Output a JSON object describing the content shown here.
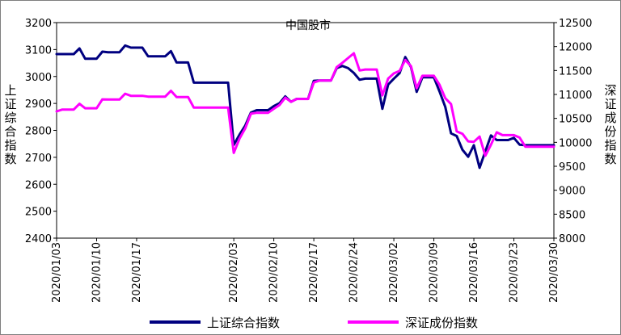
{
  "chart_data": {
    "type": "line",
    "title": "中国股市",
    "ylabel": "上证综合指数",
    "y2label": "深证成份指数",
    "ylim": [
      2400,
      3200
    ],
    "y2lim": [
      8000,
      12500
    ],
    "yticks": [
      2400,
      2500,
      2600,
      2700,
      2800,
      2900,
      3000,
      3100,
      3200
    ],
    "y2ticks": [
      8000,
      8500,
      9000,
      9500,
      10000,
      10500,
      11000,
      11500,
      12000,
      12500
    ],
    "xtick_labels": [
      "2020/01/03",
      "2020/01/10",
      "2020/01/17",
      "2020/02/03",
      "2020/02/10",
      "2020/02/17",
      "2020/02/24",
      "2020/03/02",
      "2020/03/09",
      "2020/03/16",
      "2020/03/23",
      "2020/03/30"
    ],
    "xtick_days": [
      0,
      7,
      14,
      31,
      38,
      45,
      52,
      59,
      66,
      73,
      80,
      87
    ],
    "legend_position": "bottom",
    "series": [
      {
        "name": "上证综合指数",
        "color": "#000080",
        "axis": "left",
        "x": [
          0,
          1,
          2,
          3,
          4,
          5,
          6,
          7,
          8,
          9,
          10,
          11,
          12,
          13,
          14,
          15,
          16,
          17,
          18,
          19,
          20,
          21,
          22,
          23,
          24,
          25,
          26,
          27,
          28,
          29,
          30,
          31,
          32,
          33,
          34,
          35,
          36,
          37,
          38,
          39,
          40,
          41,
          42,
          43,
          44,
          45,
          46,
          47,
          48,
          49,
          50,
          51,
          52,
          53,
          54,
          55,
          56,
          57,
          58,
          59,
          60,
          61,
          62,
          63,
          64,
          65,
          66,
          67,
          68,
          69,
          70,
          71,
          72,
          73,
          74,
          75,
          76,
          77,
          78,
          79,
          80,
          81,
          82,
          83,
          84,
          85,
          86,
          87
        ],
        "values": [
          3083,
          3083,
          3083,
          3083,
          3104,
          3066,
          3066,
          3066,
          3092,
          3090,
          3090,
          3090,
          3115,
          3107,
          3107,
          3107,
          3075,
          3075,
          3075,
          3075,
          3094,
          3052,
          3052,
          3052,
          2977,
          2977,
          2977,
          2977,
          2977,
          2977,
          2977,
          2746,
          2784,
          2818,
          2866,
          2875,
          2875,
          2875,
          2890,
          2901,
          2926,
          2906,
          2917,
          2917,
          2917,
          2984,
          2985,
          2985,
          2985,
          3031,
          3039,
          3031,
          3013,
          2988,
          2992,
          2992,
          2992,
          2880,
          2970,
          2992,
          3012,
          3072,
          3035,
          2943,
          2997,
          2997,
          2997,
          2944,
          2887,
          2789,
          2779,
          2728,
          2702,
          2745,
          2661,
          2722,
          2781,
          2764,
          2764,
          2764,
          2772,
          2747,
          2745,
          2745,
          2745,
          2745,
          2745,
          2745
        ]
      },
      {
        "name": "深证成份指数",
        "color": "#ff00ff",
        "axis": "right",
        "x": [
          0,
          1,
          2,
          3,
          4,
          5,
          6,
          7,
          8,
          9,
          10,
          11,
          12,
          13,
          14,
          15,
          16,
          17,
          18,
          19,
          20,
          21,
          22,
          23,
          24,
          25,
          26,
          27,
          28,
          29,
          30,
          31,
          32,
          33,
          34,
          35,
          36,
          37,
          38,
          39,
          40,
          41,
          42,
          43,
          44,
          45,
          46,
          47,
          48,
          49,
          50,
          51,
          52,
          53,
          54,
          55,
          56,
          57,
          58,
          59,
          60,
          61,
          62,
          63,
          64,
          65,
          66,
          67,
          68,
          69,
          70,
          71,
          72,
          73,
          74,
          75,
          76,
          77,
          78,
          79,
          80,
          81,
          82,
          83,
          84,
          85,
          86,
          87
        ],
        "values": [
          10646,
          10685,
          10685,
          10685,
          10804,
          10712,
          10712,
          10712,
          10898,
          10893,
          10893,
          10893,
          11016,
          10972,
          10972,
          10972,
          10955,
          10955,
          10955,
          10955,
          11076,
          10946,
          10946,
          10946,
          10725,
          10725,
          10725,
          10725,
          10725,
          10725,
          10725,
          9780,
          10078,
          10292,
          10597,
          10618,
          10618,
          10618,
          10700,
          10780,
          10933,
          10847,
          10905,
          10905,
          10905,
          11250,
          11290,
          11290,
          11290,
          11570,
          11660,
          11760,
          11860,
          11500,
          11520,
          11520,
          11520,
          10980,
          11330,
          11440,
          11490,
          11720,
          11590,
          11130,
          11390,
          11390,
          11390,
          11200,
          10920,
          10800,
          10230,
          10180,
          10020,
          10010,
          10120,
          9720,
          9950,
          10210,
          10150,
          10150,
          10150,
          10100,
          9910,
          9910,
          9910,
          9910,
          9910,
          9910
        ]
      }
    ]
  }
}
